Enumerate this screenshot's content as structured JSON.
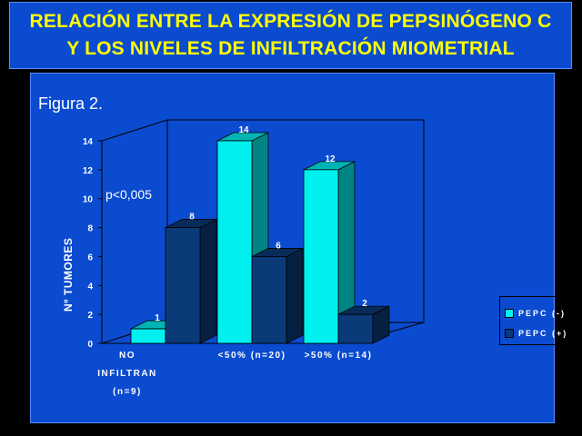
{
  "title": {
    "line1": "RELACIÓN ENTRE LA EXPRESIÓN DE PEPSINÓGENO C",
    "line2": "Y LOS NIVELES DE INFILTRACIÓN MIOMETRIAL"
  },
  "figure_label": "Figura 2.",
  "annotation": "p<0,005",
  "colors": {
    "background": "#000000",
    "panel": "#0a4bd0",
    "title_text": "#ffff00",
    "series_neg": "#00f0f0",
    "series_pos": "#0a3a78"
  },
  "chart_data": {
    "type": "bar",
    "title": "RELACIÓN ENTRE LA EXPRESIÓN DE PEPSINÓGENO C Y LOS NIVELES DE INFILTRACIÓN MIOMETRIAL",
    "xlabel": "",
    "ylabel": "Nº TUMORES",
    "ylim": [
      0,
      14
    ],
    "yticks": [
      0,
      2,
      4,
      6,
      8,
      10,
      12,
      14
    ],
    "categories": [
      [
        "NO",
        "INFILTRAN",
        "(n=9)"
      ],
      [
        "<50% (n=20)"
      ],
      [
        ">50% (n=14)"
      ]
    ],
    "series": [
      {
        "name": "PEPC (-)",
        "values": [
          1,
          14,
          12
        ]
      },
      {
        "name": "PEPC (+)",
        "values": [
          8,
          6,
          2
        ]
      }
    ],
    "legend_position": "right",
    "three_d": true
  }
}
